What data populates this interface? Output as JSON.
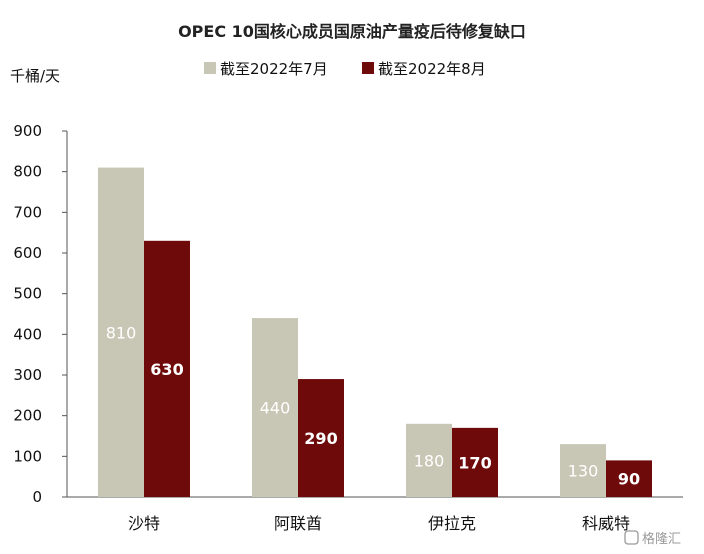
{
  "chart_data": {
    "type": "bar",
    "title": "OPEC 10国核心成员国原油产量疫后待修复缺口",
    "ylabel": "千桶/天",
    "categories": [
      "沙特",
      "阿联酋",
      "伊拉克",
      "科威特"
    ],
    "series": [
      {
        "name": "截至2022年7月",
        "values": [
          810,
          440,
          180,
          130
        ],
        "color": "#c8c6b4",
        "label_color": "#ffffff"
      },
      {
        "name": "截至2022年8月",
        "values": [
          630,
          290,
          170,
          90
        ],
        "color": "#6e0a0a",
        "label_color": "#ffffff"
      }
    ],
    "yticks": [
      0,
      100,
      200,
      300,
      400,
      500,
      600,
      700,
      800,
      900
    ],
    "ylim": [
      0,
      900
    ],
    "grid": false,
    "legend_position": "top-center"
  },
  "watermark": "格隆汇"
}
